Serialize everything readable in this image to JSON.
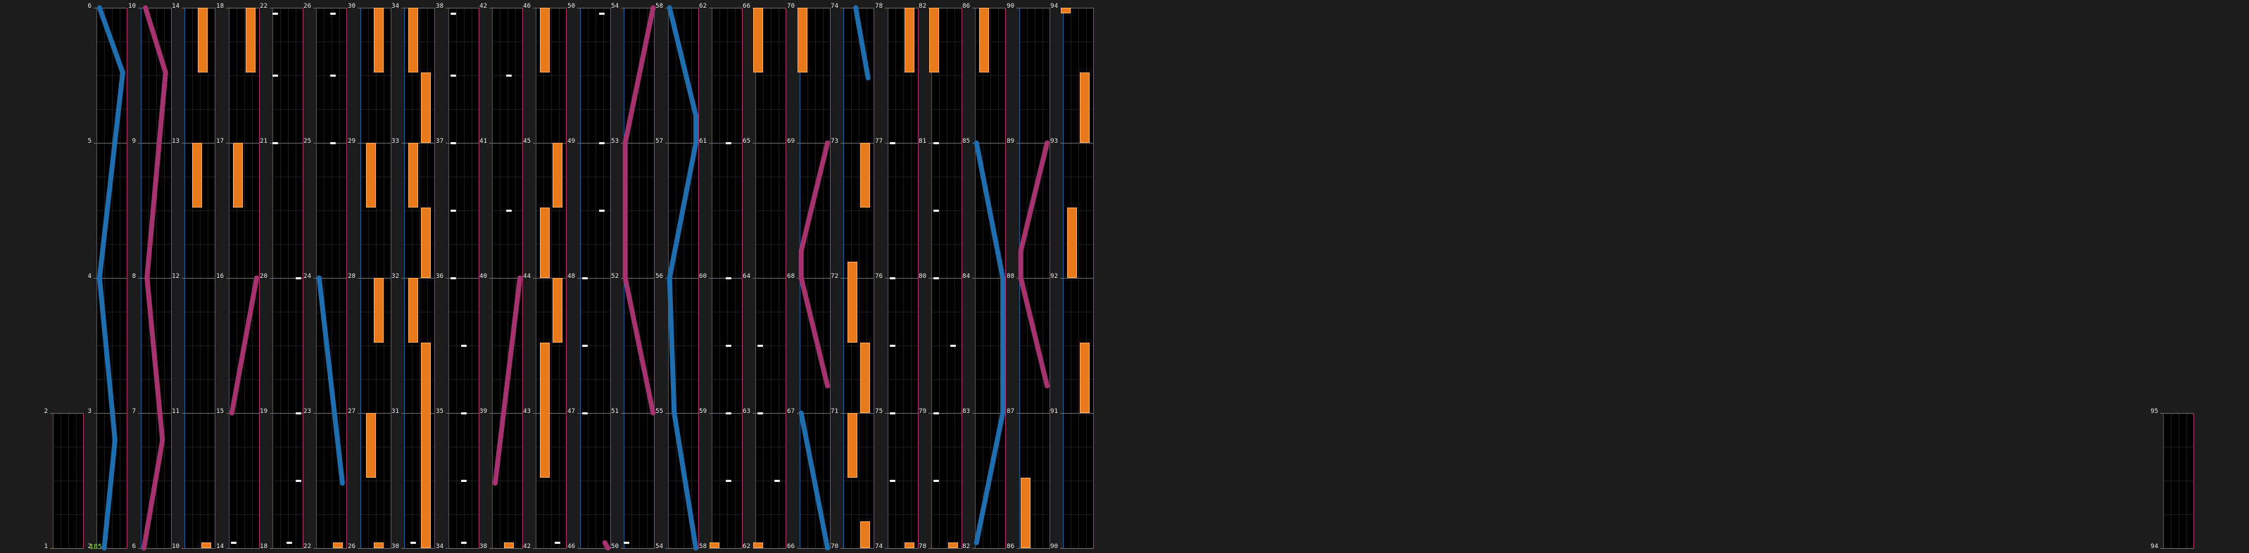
{
  "editor": {
    "combo_counter": "185",
    "colors": {
      "background": "#1c1c1c",
      "lane": "#000000",
      "lane_left_edge": "#1d5f99",
      "lane_right_edge": "#b0306e",
      "measure_line": "#6a6a6a",
      "hold_note": "#e87a1c",
      "tap_note": "#f2f2f2",
      "blue_ribbon": "#1f6fb0",
      "pink_ribbon": "#a6336f",
      "counter_text": "#7cdc2c"
    }
  },
  "columns": [
    {
      "labels": [
        "1",
        "2"
      ],
      "notes": []
    },
    {
      "labels": [
        "2",
        "3",
        "4",
        "5",
        "6"
      ],
      "notes": [
        {
          "type": "slide",
          "color": "blue",
          "path": [
            [
              0.1,
              0
            ],
            [
              0.85,
              0.12
            ],
            [
              0.1,
              0.5
            ],
            [
              0.6,
              0.8
            ],
            [
              0.25,
              1
            ]
          ]
        }
      ]
    },
    {
      "labels": [
        "6",
        "7",
        "8",
        "9",
        "10"
      ],
      "notes": [
        {
          "type": "slide",
          "color": "pink",
          "path": [
            [
              0.15,
              0
            ],
            [
              0.8,
              0.12
            ],
            [
              0.2,
              0.5
            ],
            [
              0.7,
              0.8
            ],
            [
              0.1,
              1
            ]
          ]
        }
      ]
    },
    {
      "labels": [
        "10",
        "11",
        "12",
        "13",
        "14"
      ],
      "notes": [
        {
          "type": "hold",
          "pos": 0.6,
          "from": 0,
          "to": 0.12
        },
        {
          "type": "hold",
          "pos": 0.4,
          "from": 0.25,
          "to": 0.37
        },
        {
          "type": "hold",
          "pos": 0.7,
          "from": 0.99,
          "to": 1
        }
      ]
    },
    {
      "labels": [
        "14",
        "15",
        "16",
        "17",
        "18"
      ],
      "notes": [
        {
          "type": "hold",
          "pos": 0.7,
          "from": 0,
          "to": 0.12
        },
        {
          "type": "hold",
          "pos": 0.3,
          "from": 0.25,
          "to": 0.37
        },
        {
          "type": "slide",
          "color": "pink",
          "path": [
            [
              0.9,
              0.5
            ],
            [
              0.1,
              0.75
            ]
          ]
        },
        {
          "type": "tap",
          "pos": 0.15,
          "at": 0.99
        }
      ]
    },
    {
      "labels": [
        "18",
        "19",
        "20",
        "21",
        "22"
      ],
      "notes": [
        {
          "type": "tap",
          "pos": 0.1,
          "at": 0.01
        },
        {
          "type": "tap",
          "pos": 0.1,
          "at": 0.125
        },
        {
          "type": "tap",
          "pos": 0.1,
          "at": 0.25
        },
        {
          "type": "tap",
          "pos": 0.85,
          "at": 0.5
        },
        {
          "type": "tap",
          "pos": 0.85,
          "at": 0.75
        },
        {
          "type": "tap",
          "pos": 0.85,
          "at": 0.875
        },
        {
          "type": "tap",
          "pos": 0.55,
          "at": 0.99
        }
      ]
    },
    {
      "labels": [
        "22",
        "23",
        "24",
        "25",
        "26"
      ],
      "notes": [
        {
          "type": "tap",
          "pos": 0.55,
          "at": 0.01
        },
        {
          "type": "tap",
          "pos": 0.55,
          "at": 0.125
        },
        {
          "type": "tap",
          "pos": 0.55,
          "at": 0.25
        },
        {
          "type": "slide",
          "color": "blue",
          "path": [
            [
              0.1,
              0.5
            ],
            [
              0.85,
              0.88
            ]
          ]
        },
        {
          "type": "hold",
          "pos": 0.7,
          "from": 0.99,
          "to": 1
        }
      ]
    },
    {
      "labels": [
        "26",
        "27",
        "28",
        "29",
        "30"
      ],
      "notes": [
        {
          "type": "hold",
          "pos": 0.6,
          "from": 0,
          "to": 0.12
        },
        {
          "type": "hold",
          "pos": 0.35,
          "from": 0.25,
          "to": 0.37
        },
        {
          "type": "hold",
          "pos": 0.6,
          "from": 0.5,
          "to": 0.62
        },
        {
          "type": "hold",
          "pos": 0.35,
          "from": 0.75,
          "to": 0.87
        },
        {
          "type": "hold",
          "pos": 0.6,
          "from": 0.99,
          "to": 1
        }
      ]
    },
    {
      "labels": [
        "30",
        "31",
        "32",
        "33",
        "34"
      ],
      "notes": [
        {
          "type": "hold",
          "pos": 0.3,
          "from": 0,
          "to": 0.12
        },
        {
          "type": "hold",
          "pos": 0.7,
          "from": 0.12,
          "to": 0.25
        },
        {
          "type": "hold",
          "pos": 0.3,
          "from": 0.25,
          "to": 0.37
        },
        {
          "type": "hold",
          "pos": 0.7,
          "from": 0.37,
          "to": 0.5
        },
        {
          "type": "hold",
          "pos": 0.3,
          "from": 0.5,
          "to": 0.62
        },
        {
          "type": "hold",
          "pos": 0.7,
          "from": 0.62,
          "to": 1
        },
        {
          "type": "tap",
          "pos": 0.3,
          "at": 0.99
        }
      ]
    },
    {
      "labels": [
        "34",
        "35",
        "36",
        "37",
        "38"
      ],
      "notes": [
        {
          "type": "tap",
          "pos": 0.15,
          "at": 0.01
        },
        {
          "type": "tap",
          "pos": 0.15,
          "at": 0.125
        },
        {
          "type": "tap",
          "pos": 0.15,
          "at": 0.25
        },
        {
          "type": "tap",
          "pos": 0.15,
          "at": 0.375
        },
        {
          "type": "tap",
          "pos": 0.15,
          "at": 0.5
        },
        {
          "type": "tap",
          "pos": 0.5,
          "at": 0.625
        },
        {
          "type": "tap",
          "pos": 0.5,
          "at": 0.75
        },
        {
          "type": "tap",
          "pos": 0.5,
          "at": 0.875
        },
        {
          "type": "tap",
          "pos": 0.5,
          "at": 0.99
        }
      ]
    },
    {
      "labels": [
        "38",
        "39",
        "40",
        "41",
        "42"
      ],
      "notes": [
        {
          "type": "tap",
          "pos": 0.55,
          "at": 0.125
        },
        {
          "type": "tap",
          "pos": 0.55,
          "at": 0.375
        },
        {
          "type": "slide",
          "color": "pink",
          "path": [
            [
              0.9,
              0.5
            ],
            [
              0.1,
              0.88
            ]
          ]
        },
        {
          "type": "hold",
          "pos": 0.55,
          "from": 0.99,
          "to": 1
        }
      ]
    },
    {
      "labels": [
        "42",
        "43",
        "44",
        "45",
        "46"
      ],
      "notes": [
        {
          "type": "hold",
          "pos": 0.3,
          "from": 0,
          "to": 0.12
        },
        {
          "type": "hold",
          "pos": 0.7,
          "from": 0.25,
          "to": 0.37
        },
        {
          "type": "hold",
          "pos": 0.3,
          "from": 0.37,
          "to": 0.5
        },
        {
          "type": "hold",
          "pos": 0.7,
          "from": 0.5,
          "to": 0.62
        },
        {
          "type": "hold",
          "pos": 0.3,
          "from": 0.62,
          "to": 0.87
        },
        {
          "type": "tap",
          "pos": 0.7,
          "at": 0.99
        }
      ]
    },
    {
      "labels": [
        "46",
        "47",
        "48",
        "49",
        "50"
      ],
      "notes": [
        {
          "type": "tap",
          "pos": 0.7,
          "at": 0.01
        },
        {
          "type": "tap",
          "pos": 0.7,
          "at": 0.25
        },
        {
          "type": "tap",
          "pos": 0.7,
          "at": 0.375
        },
        {
          "type": "tap",
          "pos": 0.15,
          "at": 0.5
        },
        {
          "type": "tap",
          "pos": 0.15,
          "at": 0.625
        },
        {
          "type": "tap",
          "pos": 0.15,
          "at": 0.75
        },
        {
          "type": "slide",
          "color": "pink",
          "path": [
            [
              0.8,
              0.99
            ],
            [
              0.9,
              1
            ]
          ]
        }
      ]
    },
    {
      "labels": [
        "50",
        "51",
        "52",
        "53",
        "54"
      ],
      "notes": [
        {
          "type": "slide",
          "color": "pink",
          "path": [
            [
              0.95,
              0
            ],
            [
              0.05,
              0.25
            ],
            [
              0.05,
              0.5
            ],
            [
              0.95,
              0.75
            ]
          ]
        },
        {
          "type": "tap",
          "pos": 0.1,
          "at": 0.99
        }
      ]
    },
    {
      "labels": [
        "54",
        "55",
        "56",
        "57",
        "58"
      ],
      "notes": [
        {
          "type": "slide",
          "color": "blue",
          "path": [
            [
              0.05,
              0
            ],
            [
              0.9,
              0.2
            ],
            [
              0.9,
              0.25
            ],
            [
              0.05,
              0.5
            ],
            [
              0.2,
              0.75
            ],
            [
              0.9,
              1
            ]
          ]
        }
      ]
    },
    {
      "labels": [
        "58",
        "59",
        "60",
        "61",
        "62"
      ],
      "notes": [
        {
          "type": "tap",
          "pos": 0.55,
          "at": 0.25
        },
        {
          "type": "tap",
          "pos": 0.55,
          "at": 0.5
        },
        {
          "type": "tap",
          "pos": 0.55,
          "at": 0.625
        },
        {
          "type": "tap",
          "pos": 0.55,
          "at": 0.75
        },
        {
          "type": "tap",
          "pos": 0.55,
          "at": 0.875
        },
        {
          "type": "hold",
          "pos": 0.1,
          "from": 0.99,
          "to": 1
        }
      ]
    },
    {
      "labels": [
        "62",
        "63",
        "64",
        "65",
        "66"
      ],
      "notes": [
        {
          "type": "hold",
          "pos": 0.1,
          "from": 0,
          "to": 0.12
        },
        {
          "type": "tap",
          "pos": 0.15,
          "at": 0.625
        },
        {
          "type": "tap",
          "pos": 0.15,
          "at": 0.75
        },
        {
          "type": "tap",
          "pos": 0.7,
          "at": 0.875
        },
        {
          "type": "hold",
          "pos": 0.1,
          "from": 0.99,
          "to": 1
        }
      ]
    },
    {
      "labels": [
        "66",
        "67",
        "68",
        "69",
        "70"
      ],
      "notes": [
        {
          "type": "hold",
          "pos": 0.1,
          "from": 0,
          "to": 0.12
        },
        {
          "type": "slide",
          "color": "pink",
          "path": [
            [
              0.9,
              0.25
            ],
            [
              0.05,
              0.45
            ],
            [
              0.05,
              0.5
            ],
            [
              0.9,
              0.7
            ]
          ]
        },
        {
          "type": "slide",
          "color": "blue",
          "path": [
            [
              0.05,
              0.75
            ],
            [
              0.9,
              1
            ]
          ]
        }
      ]
    },
    {
      "labels": [
        "70",
        "71",
        "72",
        "73",
        "74"
      ],
      "notes": [
        {
          "type": "slide",
          "color": "blue",
          "path": [
            [
              0.4,
              0
            ],
            [
              0.8,
              0.13
            ]
          ]
        },
        {
          "type": "hold",
          "pos": 0.7,
          "from": 0.25,
          "to": 0.37
        },
        {
          "type": "hold",
          "pos": 0.3,
          "from": 0.47,
          "to": 0.62
        },
        {
          "type": "hold",
          "pos": 0.7,
          "from": 0.62,
          "to": 0.75
        },
        {
          "type": "hold",
          "pos": 0.3,
          "from": 0.75,
          "to": 0.87
        },
        {
          "type": "hold",
          "pos": 0.7,
          "from": 0.95,
          "to": 1
        }
      ]
    },
    {
      "labels": [
        "74",
        "75",
        "76",
        "77",
        "78"
      ],
      "notes": [
        {
          "type": "hold",
          "pos": 0.7,
          "from": 0,
          "to": 0.12
        },
        {
          "type": "tap",
          "pos": 0.15,
          "at": 0.25
        },
        {
          "type": "tap",
          "pos": 0.15,
          "at": 0.5
        },
        {
          "type": "tap",
          "pos": 0.15,
          "at": 0.625
        },
        {
          "type": "tap",
          "pos": 0.15,
          "at": 0.75
        },
        {
          "type": "tap",
          "pos": 0.15,
          "at": 0.875
        },
        {
          "type": "hold",
          "pos": 0.7,
          "from": 0.99,
          "to": 1
        }
      ]
    },
    {
      "labels": [
        "78",
        "79",
        "80",
        "81",
        "82"
      ],
      "notes": [
        {
          "type": "hold",
          "pos": 0.1,
          "from": 0,
          "to": 0.12
        },
        {
          "type": "tap",
          "pos": 0.15,
          "at": 0.25
        },
        {
          "type": "tap",
          "pos": 0.15,
          "at": 0.375
        },
        {
          "type": "tap",
          "pos": 0.15,
          "at": 0.5
        },
        {
          "type": "tap",
          "pos": 0.7,
          "at": 0.625
        },
        {
          "type": "tap",
          "pos": 0.15,
          "at": 0.75
        },
        {
          "type": "tap",
          "pos": 0.15,
          "at": 0.875
        },
        {
          "type": "hold",
          "pos": 0.7,
          "from": 0.99,
          "to": 1
        }
      ]
    },
    {
      "labels": [
        "82",
        "83",
        "84",
        "85",
        "86"
      ],
      "notes": [
        {
          "type": "hold",
          "pos": 0.3,
          "from": 0,
          "to": 0.12
        },
        {
          "type": "slide",
          "color": "blue",
          "path": [
            [
              0.05,
              0.25
            ],
            [
              0.9,
              0.5
            ],
            [
              0.9,
              0.75
            ],
            [
              0.05,
              0.99
            ]
          ]
        }
      ]
    },
    {
      "labels": [
        "86",
        "87",
        "88",
        "89",
        "90"
      ],
      "notes": [
        {
          "type": "slide",
          "color": "pink",
          "path": [
            [
              0.9,
              0.25
            ],
            [
              0.05,
              0.45
            ],
            [
              0.05,
              0.5
            ],
            [
              0.9,
              0.7
            ]
          ]
        },
        {
          "type": "hold",
          "pos": 0.2,
          "from": 0.87,
          "to": 1
        }
      ]
    },
    {
      "labels": [
        "90",
        "91",
        "92",
        "93",
        "94"
      ],
      "notes": [
        {
          "type": "hold",
          "pos": 0.1,
          "from": 0,
          "to": 0.01
        },
        {
          "type": "hold",
          "pos": 0.7,
          "from": 0.12,
          "to": 0.25
        },
        {
          "type": "hold",
          "pos": 0.3,
          "from": 0.37,
          "to": 0.5
        },
        {
          "type": "hold",
          "pos": 0.7,
          "from": 0.62,
          "to": 0.75
        }
      ]
    },
    {
      "labels": [
        "94",
        "95"
      ],
      "notes": []
    }
  ]
}
